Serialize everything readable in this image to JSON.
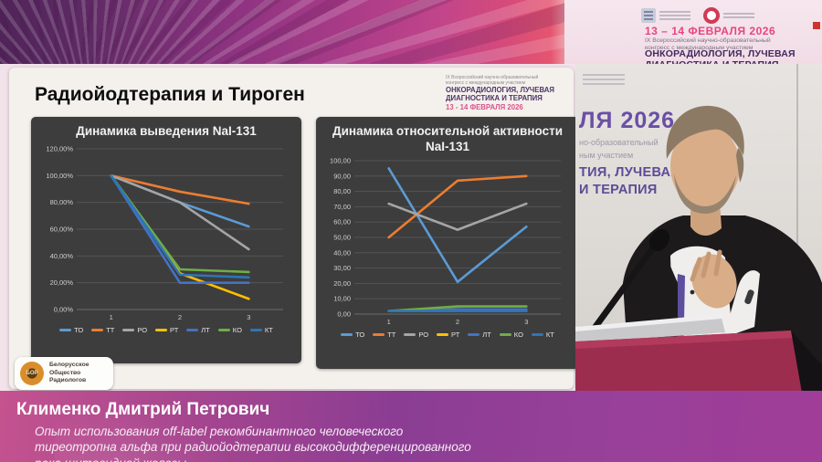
{
  "banner": {
    "dates": "13 – 14 ФЕВРАЛЯ 2026",
    "congress_line1": "IX Всероссийский научно-образовательный",
    "congress_line2": "конгресс с международным участием",
    "title_line1": "ОНКОРАДИОЛОГИЯ, ЛУЧЕВАЯ",
    "title_line2": "ДИАГНОСТИКА И ТЕРАПИЯ"
  },
  "slide": {
    "title": "Радиойодтерапия и Тироген",
    "watermark": {
      "line1": "IX Всероссийский научно-образовательный",
      "line2": "конгресс с международным участием",
      "line3": "ОНКОРАДИОЛОГИЯ, ЛУЧЕВАЯ",
      "line4": "ДИАГНОСТИКА И ТЕРАПИЯ",
      "line5": "13 - 14 ФЕВРАЛЯ 2026"
    },
    "footer_logo": {
      "emblem": "БОР",
      "org_line1": "Белорусское",
      "org_line2": "Общество",
      "org_line3": "Радиологов"
    }
  },
  "chart_data": [
    {
      "type": "line",
      "title": "Динамика выведения NaI-131",
      "xlabel": "",
      "ylabel": "",
      "categories": [
        "1",
        "2",
        "3"
      ],
      "ylim": [
        0,
        120
      ],
      "ytick_step": 20,
      "ytick_labels": [
        "120,00%",
        "100,00%",
        "80,00%",
        "60,00%",
        "40,00%",
        "20,00%",
        "0,00%"
      ],
      "grid": true,
      "legend_position": "bottom",
      "series": [
        {
          "name": "ТО",
          "color": "#5B9BD5",
          "values": [
            100,
            80,
            62
          ]
        },
        {
          "name": "ТТ",
          "color": "#ED7D31",
          "values": [
            100,
            88,
            79
          ]
        },
        {
          "name": "РО",
          "color": "#A5A5A5",
          "values": [
            100,
            80,
            45
          ]
        },
        {
          "name": "РТ",
          "color": "#FFC000",
          "values": [
            100,
            27,
            8
          ]
        },
        {
          "name": "ЛТ",
          "color": "#4472C4",
          "values": [
            100,
            20,
            20
          ]
        },
        {
          "name": "КО",
          "color": "#70AD47",
          "values": [
            100,
            30,
            28
          ]
        },
        {
          "name": "КТ",
          "color": "#2E75B6",
          "values": [
            100,
            26,
            24
          ]
        }
      ]
    },
    {
      "type": "line",
      "title": "Динамика относительной активности NaI-131",
      "xlabel": "",
      "ylabel": "",
      "categories": [
        "1",
        "2",
        "3"
      ],
      "ylim": [
        0,
        100
      ],
      "ytick_step": 10,
      "ytick_labels": [
        "100,00",
        "90,00",
        "80,00",
        "70,00",
        "60,00",
        "50,00",
        "40,00",
        "30,00",
        "20,00",
        "10,00",
        "0,00"
      ],
      "grid": true,
      "legend_position": "bottom",
      "series": [
        {
          "name": "ТО",
          "color": "#5B9BD5",
          "values": [
            95,
            21,
            57
          ]
        },
        {
          "name": "ТТ",
          "color": "#ED7D31",
          "values": [
            50,
            87,
            90
          ]
        },
        {
          "name": "РО",
          "color": "#A5A5A5",
          "values": [
            72,
            55,
            72
          ]
        },
        {
          "name": "РТ",
          "color": "#FFC000",
          "values": [
            2,
            3,
            2
          ]
        },
        {
          "name": "ЛТ",
          "color": "#4472C4",
          "values": [
            2,
            3,
            3
          ]
        },
        {
          "name": "КО",
          "color": "#70AD47",
          "values": [
            2,
            5,
            5
          ]
        },
        {
          "name": "КТ",
          "color": "#2E75B6",
          "values": [
            2,
            2,
            2
          ]
        }
      ]
    }
  ],
  "video": {
    "backdrop": {
      "year_fragment": "ЛЯ 2026",
      "sub_line1": "но-образовательный",
      "sub_line2": "ным участием",
      "title_line1": "ТИЯ, ЛУЧЕВАЯ",
      "title_line2": "И ТЕРАПИЯ"
    }
  },
  "footer": {
    "speaker_name": "Клименко Дмитрий Петрович",
    "talk_title_line1": "Опыт использования off-label рекомбинантного человеческого",
    "talk_title_line2": "тиреотропна альфа при радиойодтерапии высокодифференцированного",
    "talk_title_line3": "рака щитовидной железы"
  },
  "colors": {
    "banner_purple": "#5d2a63",
    "banner_magenta": "#c2458a",
    "banner_light_pink": "#f4e3ea",
    "accent_pink": "#e8457d",
    "accent_dark_purple": "#42295e",
    "chart_panel_bg": "#3d3d3d",
    "podium_crimson": "#9c2d4e",
    "footer_gradient_left": "#c4538f",
    "footer_gradient_right": "#a03d98"
  }
}
